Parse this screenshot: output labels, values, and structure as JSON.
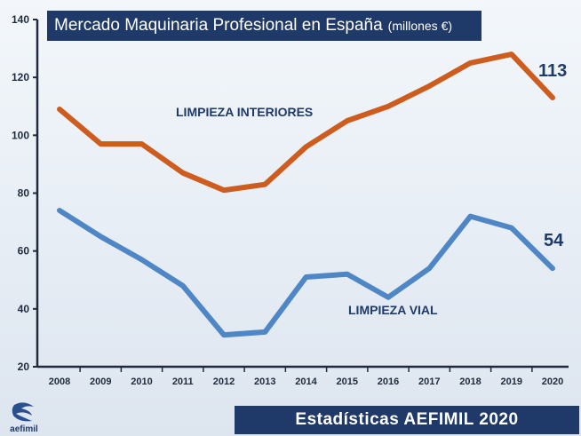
{
  "title": {
    "main": "Mercado Maquinaria Profesional en España",
    "unit": "(millones €)"
  },
  "footer": "Estadísticas AEFIMIL 2020",
  "logo": {
    "name": "aefimil",
    "icon": "aefimil-logo-icon"
  },
  "chart_data": {
    "type": "line",
    "title": "Mercado Maquinaria Profesional en España (millones €)",
    "xlabel": "",
    "ylabel": "",
    "ylim": [
      20,
      140
    ],
    "yticks": [
      20,
      40,
      60,
      80,
      100,
      120,
      140
    ],
    "grid": false,
    "legend": "inline labels",
    "categories": [
      "2008",
      "2009",
      "2010",
      "2011",
      "2012",
      "2013",
      "2014",
      "2015",
      "2016",
      "2017",
      "2018",
      "2019",
      "2020"
    ],
    "series": [
      {
        "name": "LIMPIEZA INTERIORES",
        "color": "#cd5c1e",
        "values": [
          109,
          97,
          97,
          87,
          81,
          83,
          96,
          105,
          110,
          117,
          125,
          128,
          113
        ],
        "end_label": "113"
      },
      {
        "name": "LIMPIEZA  VIAL",
        "color": "#4f86c6",
        "values": [
          74,
          65,
          57,
          48,
          31,
          32,
          51,
          52,
          44,
          54,
          72,
          68,
          54
        ],
        "end_label": "54"
      }
    ]
  }
}
